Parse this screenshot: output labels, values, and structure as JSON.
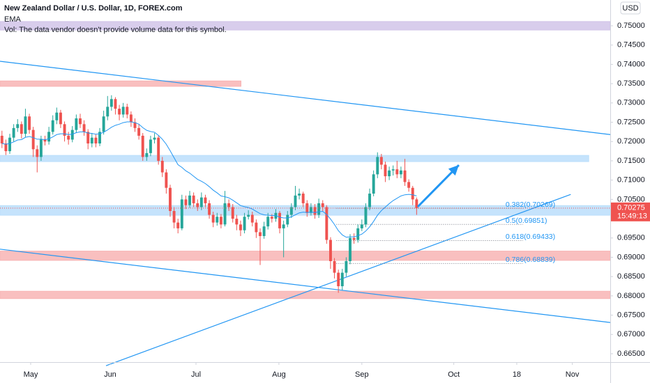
{
  "chart_data": {
    "type": "candlestick",
    "title": "New Zealand Dollar / U.S. Dollar, 1D, FOREX.com",
    "indicator": "EMA",
    "volume_note": "Vol: The data vendor doesn't provide volume data for this symbol.",
    "currency": "USD",
    "last_price": 0.70275,
    "countdown": "15:49:13",
    "up_color": "#26a69a",
    "down_color": "#ef5350",
    "xlim": [
      -0.5,
      155.5
    ],
    "xticks": [
      {
        "value": 7.34,
        "label": "May"
      },
      {
        "value": 27.66,
        "label": "Jun"
      },
      {
        "value": 49.6,
        "label": "Jul"
      },
      {
        "value": 70.8,
        "label": "Aug"
      },
      {
        "value": 92,
        "label": "Sep"
      },
      {
        "value": 115.5,
        "label": "Oct"
      },
      {
        "value": 131.6,
        "label": "18"
      },
      {
        "value": 145.8,
        "label": "Nov"
      }
    ],
    "ylim": [
      0.66283,
      0.75668
    ],
    "yticks": [
      {
        "value": 0.665,
        "label": "0.66500"
      },
      {
        "value": 0.67,
        "label": "0.67000"
      },
      {
        "value": 0.675,
        "label": "0.67500"
      },
      {
        "value": 0.68,
        "label": "0.68000"
      },
      {
        "value": 0.685,
        "label": "0.68500"
      },
      {
        "value": 0.69,
        "label": "0.69000"
      },
      {
        "value": 0.695,
        "label": "0.69500"
      },
      {
        "value": 0.7,
        "label": "0.70000"
      },
      {
        "value": 0.705,
        "label": "0.70500"
      },
      {
        "value": 0.71,
        "label": "0.71000"
      },
      {
        "value": 0.715,
        "label": "0.71500"
      },
      {
        "value": 0.72,
        "label": "0.72000"
      },
      {
        "value": 0.725,
        "label": "0.72500"
      },
      {
        "value": 0.73,
        "label": "0.73000"
      },
      {
        "value": 0.735,
        "label": "0.73500"
      },
      {
        "value": 0.74,
        "label": "0.74000"
      },
      {
        "value": 0.745,
        "label": "0.74500"
      },
      {
        "value": 0.75,
        "label": "0.75000"
      }
    ],
    "grid": false,
    "candles": [
      [
        0.7215,
        0.7228,
        0.7183,
        0.7195
      ],
      [
        0.7195,
        0.7205,
        0.7165,
        0.7175
      ],
      [
        0.7175,
        0.722,
        0.7168,
        0.721
      ],
      [
        0.721,
        0.7245,
        0.72,
        0.7235
      ],
      [
        0.7235,
        0.7258,
        0.7225,
        0.7245
      ],
      [
        0.7245,
        0.7252,
        0.7208,
        0.722
      ],
      [
        0.722,
        0.7285,
        0.7212,
        0.7265
      ],
      [
        0.7265,
        0.7272,
        0.722,
        0.723
      ],
      [
        0.723,
        0.7238,
        0.716,
        0.718
      ],
      [
        0.718,
        0.719,
        0.712,
        0.716
      ],
      [
        0.716,
        0.7215,
        0.715,
        0.7205
      ],
      [
        0.7205,
        0.7215,
        0.719,
        0.72
      ],
      [
        0.72,
        0.7238,
        0.7192,
        0.7225
      ],
      [
        0.7225,
        0.7268,
        0.7218,
        0.7255
      ],
      [
        0.7255,
        0.7288,
        0.7245,
        0.7275
      ],
      [
        0.7275,
        0.7282,
        0.7235,
        0.7245
      ],
      [
        0.7245,
        0.7252,
        0.72,
        0.7215
      ],
      [
        0.7215,
        0.7225,
        0.7192,
        0.7205
      ],
      [
        0.7205,
        0.724,
        0.7198,
        0.723
      ],
      [
        0.723,
        0.727,
        0.7222,
        0.726
      ],
      [
        0.726,
        0.7272,
        0.7235,
        0.7245
      ],
      [
        0.7245,
        0.7255,
        0.7215,
        0.7225
      ],
      [
        0.7225,
        0.7232,
        0.718,
        0.7195
      ],
      [
        0.7195,
        0.7222,
        0.7185,
        0.721
      ],
      [
        0.721,
        0.7218,
        0.7185,
        0.7195
      ],
      [
        0.7195,
        0.7235,
        0.7188,
        0.7225
      ],
      [
        0.7225,
        0.728,
        0.7218,
        0.7265
      ],
      [
        0.7265,
        0.7318,
        0.7255,
        0.729
      ],
      [
        0.729,
        0.732,
        0.728,
        0.731
      ],
      [
        0.731,
        0.7315,
        0.727,
        0.7285
      ],
      [
        0.7285,
        0.7295,
        0.7255,
        0.727
      ],
      [
        0.727,
        0.73,
        0.7262,
        0.729
      ],
      [
        0.729,
        0.7298,
        0.726,
        0.727
      ],
      [
        0.727,
        0.7278,
        0.7238,
        0.725
      ],
      [
        0.725,
        0.726,
        0.7225,
        0.7235
      ],
      [
        0.7235,
        0.7245,
        0.7205,
        0.7215
      ],
      [
        0.7215,
        0.7222,
        0.715,
        0.716
      ],
      [
        0.716,
        0.7182,
        0.715,
        0.717
      ],
      [
        0.717,
        0.7215,
        0.7162,
        0.7205
      ],
      [
        0.7205,
        0.7222,
        0.7195,
        0.721
      ],
      [
        0.721,
        0.7215,
        0.714,
        0.715
      ],
      [
        0.715,
        0.716,
        0.7108,
        0.712
      ],
      [
        0.712,
        0.7128,
        0.7065,
        0.708
      ],
      [
        0.708,
        0.7088,
        0.7005,
        0.702
      ],
      [
        0.702,
        0.703,
        0.6975,
        0.699
      ],
      [
        0.699,
        0.7,
        0.6962,
        0.6975
      ],
      [
        0.6975,
        0.7062,
        0.697,
        0.705
      ],
      [
        0.705,
        0.706,
        0.7025,
        0.7035
      ],
      [
        0.7035,
        0.7072,
        0.7028,
        0.706
      ],
      [
        0.706,
        0.7068,
        0.703,
        0.704
      ],
      [
        0.704,
        0.705,
        0.702,
        0.703
      ],
      [
        0.703,
        0.7068,
        0.7022,
        0.7055
      ],
      [
        0.7055,
        0.7062,
        0.703,
        0.704
      ],
      [
        0.704,
        0.7048,
        0.7,
        0.701
      ],
      [
        0.701,
        0.7018,
        0.6978,
        0.699
      ],
      [
        0.699,
        0.7015,
        0.6982,
        0.7005
      ],
      [
        0.7005,
        0.7012,
        0.6975,
        0.6985
      ],
      [
        0.6985,
        0.7072,
        0.698,
        0.704
      ],
      [
        0.704,
        0.705,
        0.702,
        0.703
      ],
      [
        0.703,
        0.7038,
        0.699,
        0.7
      ],
      [
        0.7,
        0.701,
        0.697,
        0.6985
      ],
      [
        0.6985,
        0.6995,
        0.6955,
        0.697
      ],
      [
        0.697,
        0.7015,
        0.6962,
        0.7005
      ],
      [
        0.7005,
        0.7022,
        0.6998,
        0.701
      ],
      [
        0.701,
        0.7018,
        0.698,
        0.699
      ],
      [
        0.699,
        0.6998,
        0.695,
        0.6965
      ],
      [
        0.6965,
        0.6975,
        0.688,
        0.6955
      ],
      [
        0.6955,
        0.6992,
        0.6948,
        0.698
      ],
      [
        0.698,
        0.7015,
        0.6972,
        0.7005
      ],
      [
        0.7005,
        0.7012,
        0.699,
        0.7
      ],
      [
        0.7,
        0.7025,
        0.6992,
        0.7015
      ],
      [
        0.7015,
        0.702,
        0.6962,
        0.6975
      ],
      [
        0.6975,
        0.6995,
        0.69,
        0.6985
      ],
      [
        0.6985,
        0.702,
        0.6978,
        0.701
      ],
      [
        0.701,
        0.704,
        0.7002,
        0.703
      ],
      [
        0.703,
        0.7085,
        0.7022,
        0.706
      ],
      [
        0.706,
        0.7078,
        0.705,
        0.7065
      ],
      [
        0.7065,
        0.707,
        0.703,
        0.704
      ],
      [
        0.704,
        0.7048,
        0.7005,
        0.7015
      ],
      [
        0.7015,
        0.704,
        0.7008,
        0.703
      ],
      [
        0.703,
        0.7038,
        0.7,
        0.701
      ],
      [
        0.701,
        0.7052,
        0.7002,
        0.704
      ],
      [
        0.704,
        0.7048,
        0.702,
        0.703
      ],
      [
        0.703,
        0.7035,
        0.6935,
        0.6945
      ],
      [
        0.6945,
        0.6952,
        0.687,
        0.689
      ],
      [
        0.689,
        0.6898,
        0.6845,
        0.686
      ],
      [
        0.686,
        0.6868,
        0.6808,
        0.6825
      ],
      [
        0.6825,
        0.687,
        0.6815,
        0.686
      ],
      [
        0.686,
        0.69,
        0.685,
        0.689
      ],
      [
        0.689,
        0.696,
        0.6882,
        0.695
      ],
      [
        0.695,
        0.6962,
        0.6935,
        0.6945
      ],
      [
        0.6945,
        0.6985,
        0.6938,
        0.6975
      ],
      [
        0.6975,
        0.6998,
        0.6968,
        0.6985
      ],
      [
        0.6985,
        0.704,
        0.6978,
        0.703
      ],
      [
        0.703,
        0.7078,
        0.7022,
        0.7065
      ],
      [
        0.7065,
        0.7125,
        0.7058,
        0.7115
      ],
      [
        0.7115,
        0.7172,
        0.7105,
        0.716
      ],
      [
        0.716,
        0.7168,
        0.7128,
        0.714
      ],
      [
        0.714,
        0.7148,
        0.7095,
        0.711
      ],
      [
        0.711,
        0.7135,
        0.71,
        0.7125
      ],
      [
        0.7125,
        0.7138,
        0.7112,
        0.7128
      ],
      [
        0.7128,
        0.715,
        0.7105,
        0.7115
      ],
      [
        0.7115,
        0.7135,
        0.7105,
        0.7125
      ],
      [
        0.7125,
        0.7155,
        0.7085,
        0.7095
      ],
      [
        0.7095,
        0.7102,
        0.707,
        0.708
      ],
      [
        0.708,
        0.7085,
        0.7035,
        0.705
      ],
      [
        0.705,
        0.7055,
        0.701,
        0.70275
      ]
    ],
    "ema": {
      "color": "#2196f3",
      "values": [
        0.7195,
        0.7193,
        0.7195,
        0.7199,
        0.7204,
        0.7205,
        0.7211,
        0.7213,
        0.721,
        0.7206,
        0.7206,
        0.7205,
        0.7207,
        0.7212,
        0.7218,
        0.722,
        0.722,
        0.7218,
        0.7219,
        0.7223,
        0.7225,
        0.7225,
        0.7222,
        0.7221,
        0.7219,
        0.722,
        0.7224,
        0.723,
        0.7237,
        0.7242,
        0.7245,
        0.7249,
        0.7251,
        0.7251,
        0.7249,
        0.7245,
        0.7236,
        0.7229,
        0.7226,
        0.7224,
        0.7216,
        0.7206,
        0.7193,
        0.7176,
        0.7158,
        0.714,
        0.7133,
        0.7124,
        0.7118,
        0.711,
        0.7102,
        0.7097,
        0.7091,
        0.7083,
        0.7074,
        0.7067,
        0.7059,
        0.7057,
        0.7054,
        0.7048,
        0.7041,
        0.7034,
        0.7031,
        0.7029,
        0.7025,
        0.7019,
        0.7013,
        0.701,
        0.7009,
        0.7008,
        0.7008,
        0.7004,
        0.7002,
        0.7002,
        0.7005,
        0.701,
        0.7015,
        0.7017,
        0.7016,
        0.7017,
        0.7016,
        0.7018,
        0.7019,
        0.7011,
        0.6999,
        0.6985,
        0.6969,
        0.6958,
        0.6952,
        0.6953,
        0.6953,
        0.6956,
        0.696,
        0.6968,
        0.6979,
        0.6993,
        0.7009,
        0.7021,
        0.703,
        0.7039,
        0.7047,
        0.7053,
        0.7059,
        0.7062,
        0.7063,
        0.7062,
        0.7059
      ]
    },
    "zones": [
      {
        "x": [
          -0.5,
          155.5
        ],
        "y": [
          0.7489,
          0.7511
        ],
        "color": "#d1c4e9"
      },
      {
        "x": [
          -0.5,
          61.1
        ],
        "y": [
          0.7343,
          0.7357
        ],
        "color": "#f8b4b4"
      },
      {
        "x": [
          -0.5,
          150
        ],
        "y": [
          0.7148,
          0.7164
        ],
        "color": "#bbdefb"
      },
      {
        "x": [
          -0.5,
          155.5
        ],
        "y": [
          0.7009,
          0.7034
        ],
        "color": "#bbdefb"
      },
      {
        "x": [
          -0.5,
          155.5
        ],
        "y": [
          0.6892,
          0.6916
        ],
        "color": "#f8b4b4"
      },
      {
        "x": [
          -0.5,
          155.5
        ],
        "y": [
          0.6793,
          0.6812
        ],
        "color": "#f8b4b4"
      }
    ],
    "trendlines": [
      {
        "x": [
          -0.5,
          155.5
        ],
        "y": [
          0.7408,
          0.7218
        ]
      },
      {
        "x": [
          -0.5,
          155.5
        ],
        "y": [
          0.6921,
          0.6731
        ]
      },
      {
        "x": [
          26.6,
          145.4
        ],
        "y": [
          0.6619,
          0.7063
        ]
      }
    ],
    "arrow": {
      "x": [
        106.3,
        116.8
      ],
      "y": [
        0.7031,
        0.7139
      ]
    },
    "drawing_color": "#2196f3",
    "fib": {
      "x": [
        85.5,
        133.2
      ],
      "levels": [
        {
          "value": 0.70269,
          "label": "0.382(0.70269)"
        },
        {
          "value": 0.69851,
          "label": "0.5(0.69851)"
        },
        {
          "value": 0.69433,
          "label": "0.618(0.69433)"
        },
        {
          "value": 0.68839,
          "label": "0.786(0.68839)"
        }
      ]
    }
  }
}
